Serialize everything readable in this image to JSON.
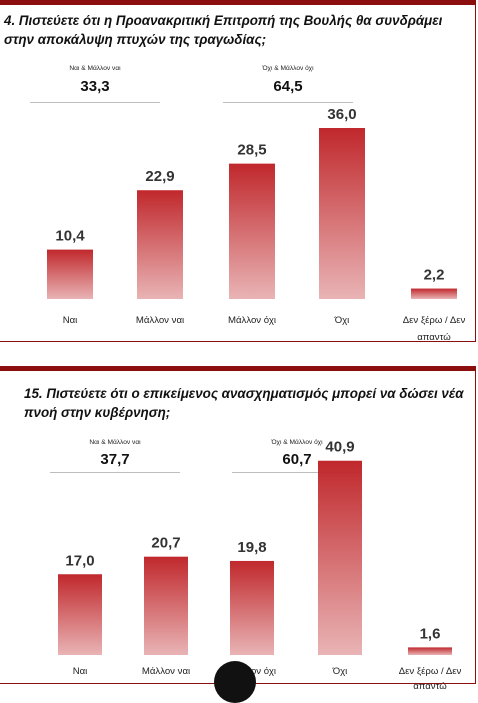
{
  "charts": [
    {
      "title": "4. Πιστεύετε ότι η Προανακριτική Επιτροπή της Βουλής θα συνδράμει στην αποκάλυψη πτυχών της τραγωδίας;",
      "summary": [
        {
          "label": "Ναι & Μάλλον ναι",
          "value": "33,3"
        },
        {
          "label": "Όχι & Μάλλον όχι",
          "value": "64,5"
        }
      ]
    },
    {
      "title": "15. Πιστεύετε ότι ο επικείμενος ανασχηματισμός μπορεί να δώσει νέα πνοή στην κυβέρνηση;",
      "summary": [
        {
          "label": "Ναι & Μάλλον ναι",
          "value": "37,7"
        },
        {
          "label": "Όχι & Μάλλον όχι",
          "value": "60,7"
        }
      ]
    }
  ],
  "chart_data": [
    {
      "type": "bar",
      "title": "4. Πιστεύετε ότι η Προανακριτική Επιτροπή της Βουλής θα συνδράμει στην αποκάλυψη πτυχών της τραγωδίας;",
      "categories": [
        "Ναι",
        "Μάλλον ναι",
        "Μάλλον όχι",
        "Όχι",
        "Δεν ξέρω / Δεν απαντώ"
      ],
      "values": [
        10.4,
        22.9,
        28.5,
        36.0,
        2.2
      ],
      "labels": [
        "10,4",
        "22,9",
        "28,5",
        "36,0",
        "2,2"
      ],
      "bar_color": "#c0282c"
    },
    {
      "type": "bar",
      "title": "15. Πιστεύετε ότι ο επικείμενος ανασχηματισμός μπορεί να δώσει νέα πνοή στην κυβέρνηση;",
      "categories": [
        "Ναι",
        "Μάλλον ναι",
        "Μάλλον όχι",
        "Όχι",
        "Δεν ξέρω / Δεν απαντώ"
      ],
      "values": [
        17.0,
        20.7,
        19.8,
        40.9,
        1.6
      ],
      "labels": [
        "17,0",
        "20,7",
        "19,8",
        "40,9",
        "1,6"
      ],
      "bar_color": "#c0282c"
    }
  ]
}
